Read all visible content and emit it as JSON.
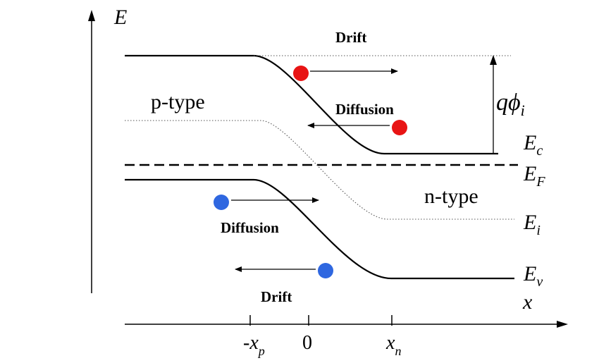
{
  "axes": {
    "y_symbol": "E",
    "x_symbol": "x",
    "ticks": {
      "minus_xp": {
        "prefix": "-",
        "main": "x",
        "sub": "p"
      },
      "zero": "0",
      "xn": {
        "main": "x",
        "sub": "n"
      }
    }
  },
  "regions": {
    "p_type": "p-type",
    "n_type": "n-type"
  },
  "bands": {
    "ec": {
      "main": "E",
      "sub": "c"
    },
    "ef": {
      "main": "E",
      "sub": "F"
    },
    "ei": {
      "main": "E",
      "sub": "i"
    },
    "ev": {
      "main": "E",
      "sub": "v"
    }
  },
  "barrier": {
    "main": "qϕ",
    "sub": "i"
  },
  "carriers": {
    "electron": {
      "drift_label": "Drift",
      "diffusion_label": "Diffusion",
      "color": "#e81414"
    },
    "hole": {
      "drift_label": "Drift",
      "diffusion_label": "Diffusion",
      "color": "#2f67e0"
    }
  },
  "colors": {
    "line": "#000000",
    "dotted": "#555555"
  }
}
